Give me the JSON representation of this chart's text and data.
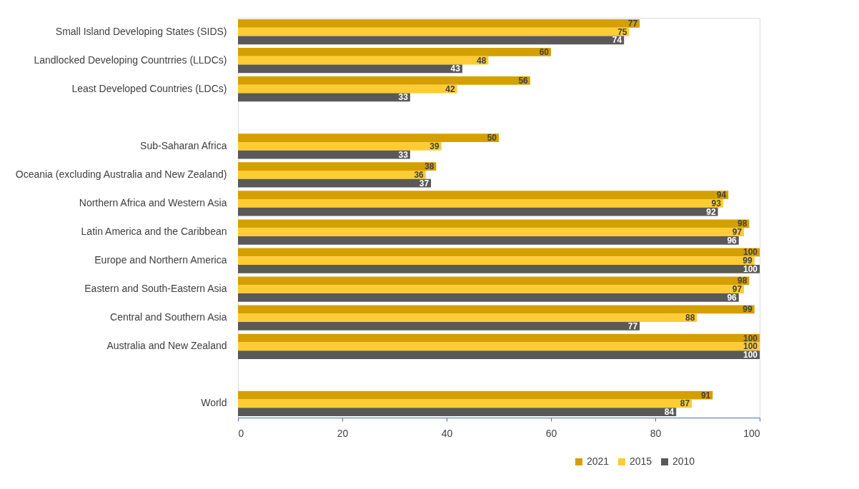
{
  "chart_data": {
    "type": "bar",
    "orientation": "horizontal",
    "categories": [
      "Small Island Developing States (SIDS)",
      "Landlocked Developing Countrries (LLDCs)",
      "Least Developed Countries (LDCs)",
      null,
      "Sub-Saharan Africa",
      "Oceania (excluding Australia and New Zealand)",
      "Northern Africa and Western Asia",
      "Latin America and the Caribbean",
      "Europe and Northern America",
      "Eastern and South-Eastern Asia",
      "Central and Southern Asia",
      "Australia and New Zealand",
      null,
      "World"
    ],
    "series": [
      {
        "name": "2021",
        "color": "#d4a000",
        "values": [
          77,
          60,
          56,
          null,
          50,
          38,
          94,
          98,
          100,
          98,
          99,
          100,
          null,
          91
        ]
      },
      {
        "name": "2015",
        "color": "#ffcc33",
        "values": [
          75,
          48,
          42,
          null,
          39,
          36,
          93,
          97,
          99,
          97,
          88,
          100,
          null,
          87
        ]
      },
      {
        "name": "2010",
        "color": "#595959",
        "values": [
          74,
          43,
          33,
          null,
          33,
          37,
          92,
          96,
          100,
          96,
          77,
          100,
          null,
          84
        ]
      }
    ],
    "xlim": [
      0,
      100
    ],
    "xticks": [
      0,
      20,
      40,
      60,
      80,
      100
    ],
    "grid": false,
    "legend": "bottom right",
    "data_labels": true
  }
}
